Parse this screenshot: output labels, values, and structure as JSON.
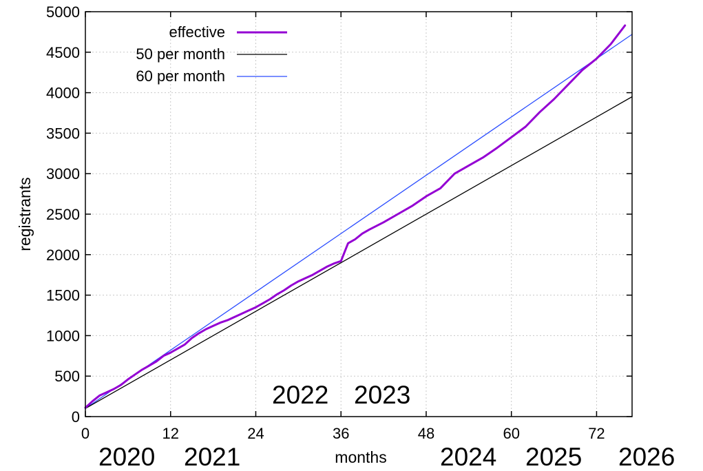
{
  "chart_data": {
    "type": "line",
    "xlabel": "months",
    "ylabel": "registrants",
    "xlim": [
      0,
      77
    ],
    "ylim": [
      0,
      5000
    ],
    "xticks": [
      0,
      12,
      24,
      36,
      48,
      60,
      72
    ],
    "xtick_labels": [
      "0",
      "12",
      "24",
      "36",
      "48",
      "60",
      "72"
    ],
    "yticks": [
      0,
      500,
      1000,
      1500,
      2000,
      2500,
      3000,
      3500,
      4000,
      4500,
      5000
    ],
    "ytick_labels": [
      "0",
      "500",
      "1000",
      "1500",
      "2000",
      "2500",
      "3000",
      "3500",
      "4000",
      "4500",
      "5000"
    ],
    "grid": true,
    "legend_position": "top-left",
    "series": [
      {
        "name": "effective",
        "color": "#9400d3",
        "x": [
          0,
          1,
          2,
          3,
          4,
          5,
          6,
          7,
          8,
          9,
          10,
          11,
          12,
          13,
          14,
          15,
          16,
          17,
          18,
          19,
          20,
          21,
          22,
          23,
          24,
          25,
          26,
          27,
          28,
          29,
          30,
          31,
          32,
          33,
          34,
          35,
          36,
          37,
          38,
          39,
          40,
          42,
          44,
          46,
          48,
          50,
          52,
          54,
          56,
          58,
          60,
          62,
          64,
          66,
          68,
          70,
          72,
          74,
          76
        ],
        "y": [
          110,
          190,
          260,
          300,
          340,
          390,
          460,
          520,
          580,
          630,
          680,
          750,
          790,
          840,
          890,
          970,
          1030,
          1080,
          1120,
          1160,
          1190,
          1230,
          1270,
          1310,
          1350,
          1400,
          1450,
          1510,
          1560,
          1620,
          1670,
          1710,
          1750,
          1800,
          1850,
          1890,
          1920,
          2140,
          2190,
          2260,
          2310,
          2400,
          2500,
          2600,
          2720,
          2820,
          3000,
          3100,
          3200,
          3320,
          3450,
          3580,
          3760,
          3920,
          4100,
          4280,
          4420,
          4600,
          4830
        ]
      },
      {
        "name": "50 per month",
        "color": "#000000",
        "x": [
          0,
          77
        ],
        "y": [
          100,
          3950
        ]
      },
      {
        "name": "60 per month",
        "color": "#2a4cff",
        "x": [
          0,
          77
        ],
        "y": [
          100,
          4720
        ]
      }
    ],
    "annotations": [
      {
        "text": "2020",
        "x": 0
      },
      {
        "text": "2021",
        "x": 12
      },
      {
        "text": "2022",
        "x": 24
      },
      {
        "text": "2023",
        "x": 36
      },
      {
        "text": "2024",
        "x": 48
      },
      {
        "text": "2025",
        "x": 60
      },
      {
        "text": "2026",
        "x": 72
      }
    ]
  }
}
